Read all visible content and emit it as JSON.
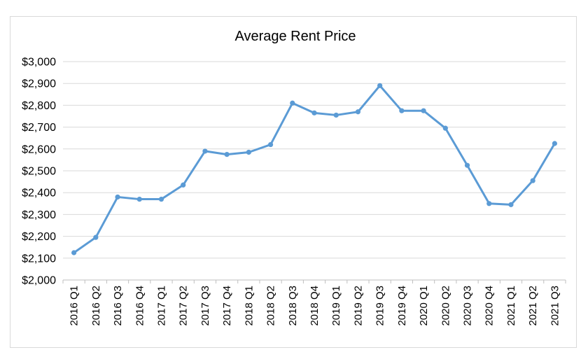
{
  "chart_data": {
    "type": "line",
    "title": "Average Rent Price",
    "xlabel": "",
    "ylabel": "",
    "ylim": [
      2000,
      3000
    ],
    "ytick_step": 100,
    "ytick_format": "currency",
    "grid": true,
    "legend": "none",
    "categories": [
      "2016 Q1",
      "2016 Q2",
      "2016 Q3",
      "2016 Q4",
      "2017 Q1",
      "2017 Q2",
      "2017 Q3",
      "2017 Q4",
      "2018 Q1",
      "2018 Q2",
      "2018 Q3",
      "2018 Q4",
      "2019 Q1",
      "2019 Q2",
      "2019 Q3",
      "2019 Q4",
      "2020 Q1",
      "2020 Q2",
      "2020 Q3",
      "2020 Q4",
      "2021 Q1",
      "2021 Q2",
      "2021 Q3"
    ],
    "series": [
      {
        "values": [
          2125,
          2195,
          2380,
          2370,
          2370,
          2435,
          2590,
          2575,
          2585,
          2620,
          2810,
          2765,
          2755,
          2770,
          2890,
          2775,
          2775,
          2695,
          2525,
          2350,
          2345,
          2455,
          2625
        ],
        "color": "#5b9bd5"
      }
    ]
  }
}
